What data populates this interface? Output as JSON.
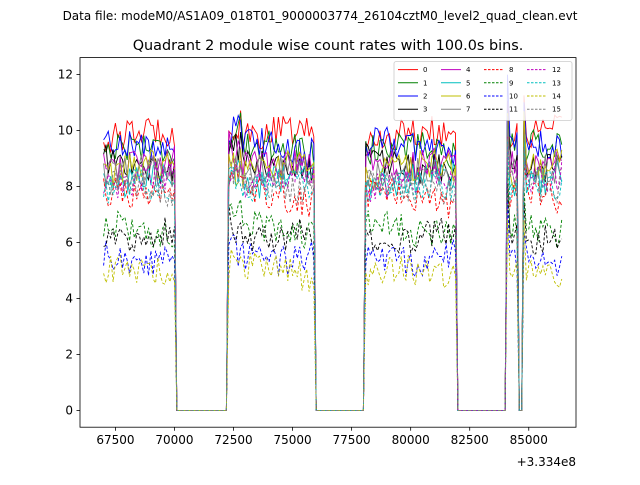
{
  "chart_data": {
    "type": "line",
    "suptitle": "Data file: modeM0/AS1A09_018T01_9000003774_26104cztM0_level2_quad_clean.evt",
    "title": "Quadrant 2 module wise count rates with 100.0s bins.",
    "xlabel": "",
    "ylabel": "",
    "x_offset_label": "+3.334e8",
    "xlim": [
      66000,
      87000
    ],
    "ylim": [
      -0.6,
      12.6
    ],
    "xticks": [
      67500,
      70000,
      72500,
      75000,
      77500,
      80000,
      82500,
      85000
    ],
    "yticks": [
      0,
      2,
      4,
      6,
      8,
      10,
      12
    ],
    "xtick_labels": [
      "67500",
      "70000",
      "72500",
      "75000",
      "77500",
      "80000",
      "82500",
      "85000"
    ],
    "ytick_labels": [
      "0",
      "2",
      "4",
      "6",
      "8",
      "10",
      "12"
    ],
    "bin_size_s": 100,
    "active_segments": [
      {
        "start": 67000,
        "end": 70000
      },
      {
        "start": 72300,
        "end": 75900
      },
      {
        "start": 78100,
        "end": 81900
      },
      {
        "start": 84100,
        "end": 84500
      },
      {
        "start": 84800,
        "end": 86400
      }
    ],
    "gap_value": 0,
    "series": [
      {
        "name": "0",
        "color": "#ff0000",
        "dash": "solid",
        "level": 9.8
      },
      {
        "name": "1",
        "color": "#008000",
        "dash": "solid",
        "level": 9.3
      },
      {
        "name": "2",
        "color": "#0000ff",
        "dash": "solid",
        "level": 9.4
      },
      {
        "name": "3",
        "color": "#000000",
        "dash": "solid",
        "level": 8.8
      },
      {
        "name": "4",
        "color": "#bf00bf",
        "dash": "solid",
        "level": 8.9
      },
      {
        "name": "5",
        "color": "#00bfbf",
        "dash": "solid",
        "level": 8.3
      },
      {
        "name": "6",
        "color": "#bfbf00",
        "dash": "solid",
        "level": 8.6
      },
      {
        "name": "7",
        "color": "#808080",
        "dash": "solid",
        "level": 8.4
      },
      {
        "name": "8",
        "color": "#ff0000",
        "dash": "dashed",
        "level": 7.6
      },
      {
        "name": "9",
        "color": "#008000",
        "dash": "dashed",
        "level": 6.5
      },
      {
        "name": "10",
        "color": "#0000ff",
        "dash": "dashed",
        "level": 5.5
      },
      {
        "name": "11",
        "color": "#000000",
        "dash": "dashed",
        "level": 6.3
      },
      {
        "name": "12",
        "color": "#bf00bf",
        "dash": "dashed",
        "level": 8.2
      },
      {
        "name": "13",
        "color": "#00bfbf",
        "dash": "dashed",
        "level": 7.9
      },
      {
        "name": "14",
        "color": "#bfbf00",
        "dash": "dashed",
        "level": 4.9
      },
      {
        "name": "15",
        "color": "#808080",
        "dash": "dashed",
        "level": 8.0
      }
    ],
    "legend_location": "upper right",
    "legend_columns": 4
  }
}
